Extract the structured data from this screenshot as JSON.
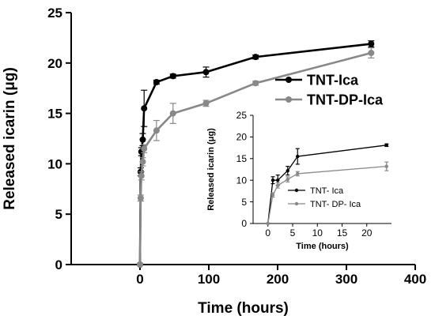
{
  "chart_data": [
    {
      "type": "line",
      "xlabel": "Time (hours)",
      "ylabel": "Released icarin (μg)",
      "xlim": [
        -100,
        400
      ],
      "ylim": [
        0,
        25
      ],
      "xticks": [
        0,
        100,
        200,
        300,
        400
      ],
      "yticks": [
        0,
        5,
        10,
        15,
        20,
        25
      ],
      "legend": "upper-right",
      "grid": false,
      "series": [
        {
          "name": "TNT-Ica",
          "color": "#000000",
          "x": [
            0,
            1,
            2,
            4,
            6,
            24,
            48,
            96,
            168,
            336
          ],
          "y": [
            0,
            9.2,
            11.2,
            12.4,
            15.5,
            18.1,
            18.7,
            19.1,
            20.6,
            21.9
          ],
          "err": [
            0,
            0.4,
            0.4,
            0.6,
            1.8,
            0.2,
            0.2,
            0.5,
            0.2,
            0.3
          ]
        },
        {
          "name": "TNT-DP-Ica",
          "color": "#888888",
          "x": [
            0,
            1,
            2,
            4,
            6,
            24,
            48,
            96,
            168,
            336
          ],
          "y": [
            0,
            6.6,
            8.8,
            10.2,
            11.5,
            13.3,
            15.0,
            16.0,
            18.0,
            21.0
          ],
          "err": [
            0,
            0.3,
            0.4,
            0.4,
            0.4,
            1.0,
            1.0,
            0.3,
            0.2,
            0.5
          ]
        }
      ]
    },
    {
      "type": "line",
      "xlabel": "Time (hours)",
      "ylabel": "Released icarin (μg)",
      "xlim": [
        -3,
        25
      ],
      "ylim": [
        0,
        25
      ],
      "xticks": [
        0,
        5,
        10,
        15,
        20
      ],
      "yticks": [
        0,
        5,
        10,
        15,
        20,
        25
      ],
      "legend": "lower-right",
      "grid": false,
      "series": [
        {
          "name": "TNT- Ica",
          "color": "#000000",
          "x": [
            0,
            1,
            2,
            4,
            6,
            24
          ],
          "y": [
            0,
            10.0,
            10.0,
            12.2,
            15.5,
            18.1
          ],
          "err": [
            0,
            0.8,
            1.2,
            1.0,
            1.8,
            0.3
          ]
        },
        {
          "name": "TNT- DP- Ica",
          "color": "#888888",
          "x": [
            0,
            1,
            2,
            4,
            6,
            24
          ],
          "y": [
            0,
            6.6,
            8.8,
            10.2,
            11.5,
            13.2
          ],
          "err": [
            0,
            0.5,
            0.6,
            0.6,
            0.5,
            1.0
          ]
        }
      ]
    }
  ]
}
